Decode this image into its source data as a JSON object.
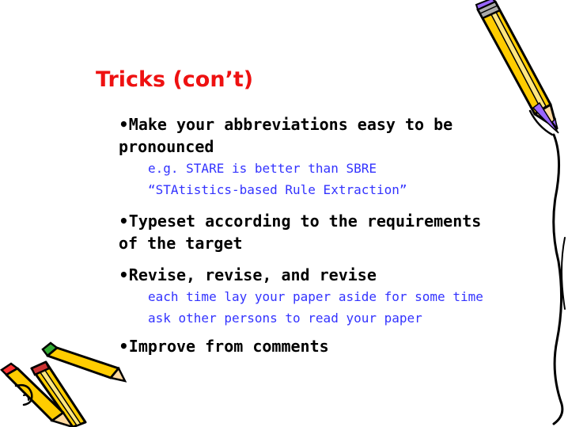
{
  "slide": {
    "title": "Tricks (con’t)",
    "bullet_glyph": "•",
    "bullets": [
      {
        "text_line1": "Make your abbreviations easy to be",
        "text_line2": "pronounced",
        "subs": [
          "e.g. STARE is better than SBRE",
          "“STAtistics-based Rule Extraction”"
        ]
      },
      {
        "text_line1": "Typeset according to the requirements",
        "text_line2": "of the target",
        "subs": []
      },
      {
        "text_line1": "Revise, revise, and revise",
        "subs": [
          "each time lay your paper aside for some time",
          "ask other persons to read your paper"
        ]
      },
      {
        "text_line1": "Improve from comments",
        "subs": []
      }
    ]
  },
  "colors": {
    "title": "#ee1111",
    "bullet_text": "#000000",
    "sub_text": "#3333ff",
    "pencil_body": "#ffcc00",
    "pencil_accent": "#9966ff",
    "pencil_tip": "#ff3333",
    "eraser_green": "#33aa33"
  },
  "decorations": {
    "top_right": "pencil-icon",
    "bottom_left": "pencils-icon",
    "right_edge": "paper-curl-icon"
  }
}
